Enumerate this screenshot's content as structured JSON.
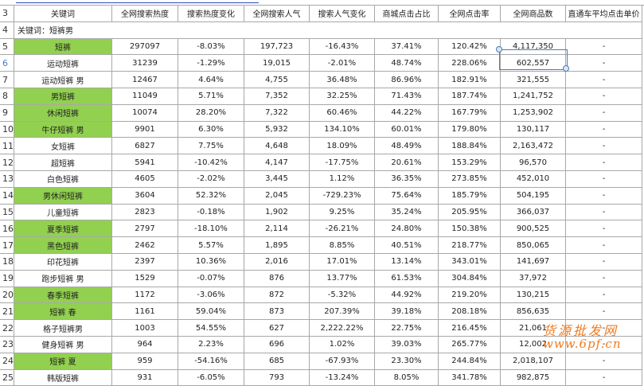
{
  "headers": [
    "关键词",
    "全网搜索热度",
    "搜索热度变化",
    "全网搜索人气",
    "搜索人气变化",
    "商城点击占比",
    "全网点击率",
    "全网商品数",
    "直通车平均点击单价"
  ],
  "row_numbers": {
    "header": "3",
    "keyword_row": "4"
  },
  "keyword_label": "关键词：短裤男",
  "selected_cell": "H6",
  "highlight_color": "#92d050",
  "rows": [
    {
      "n": "5",
      "k": "短裤",
      "g": true,
      "v": [
        "297097",
        "-8.03%",
        "197,723",
        "-16.43%",
        "37.41%",
        "120.42%",
        "4,117,350",
        "-"
      ]
    },
    {
      "n": "6",
      "k": "运动短裤",
      "g": false,
      "v": [
        "31239",
        "-1.29%",
        "19,015",
        "-2.01%",
        "48.74%",
        "228.06%",
        "602,557",
        "-"
      ]
    },
    {
      "n": "7",
      "k": "运动短裤 男",
      "g": false,
      "v": [
        "12467",
        "4.64%",
        "4,755",
        "36.48%",
        "86.96%",
        "182.91%",
        "321,555",
        "-"
      ]
    },
    {
      "n": "8",
      "k": "男短裤",
      "g": true,
      "v": [
        "11049",
        "5.71%",
        "7,352",
        "32.25%",
        "71.43%",
        "187.74%",
        "1,241,752",
        "-"
      ]
    },
    {
      "n": "9",
      "k": "休闲短裤",
      "g": true,
      "v": [
        "10074",
        "28.20%",
        "7,322",
        "60.46%",
        "44.22%",
        "167.79%",
        "1,253,902",
        "-"
      ]
    },
    {
      "n": "10",
      "k": "牛仔短裤 男",
      "g": true,
      "v": [
        "9901",
        "6.30%",
        "5,932",
        "134.10%",
        "60.01%",
        "179.80%",
        "130,117",
        "-"
      ]
    },
    {
      "n": "11",
      "k": "女短裤",
      "g": false,
      "v": [
        "6827",
        "7.75%",
        "4,648",
        "18.09%",
        "48.49%",
        "188.84%",
        "2,163,472",
        "-"
      ]
    },
    {
      "n": "12",
      "k": "超短裤",
      "g": false,
      "v": [
        "5941",
        "-10.42%",
        "4,147",
        "-17.75%",
        "20.61%",
        "153.29%",
        "96,570",
        "-"
      ]
    },
    {
      "n": "13",
      "k": "白色短裤",
      "g": false,
      "v": [
        "4605",
        "-2.02%",
        "3,445",
        "1.12%",
        "36.35%",
        "273.85%",
        "452,010",
        "-"
      ]
    },
    {
      "n": "14",
      "k": "男休闲短裤",
      "g": true,
      "v": [
        "3604",
        "52.32%",
        "2,045",
        "-729.23%",
        "75.64%",
        "185.79%",
        "504,195",
        "-"
      ]
    },
    {
      "n": "15",
      "k": "儿童短裤",
      "g": false,
      "v": [
        "2823",
        "-0.18%",
        "1,902",
        "9.25%",
        "35.24%",
        "205.95%",
        "366,037",
        "-"
      ]
    },
    {
      "n": "16",
      "k": "夏季短裤",
      "g": true,
      "v": [
        "2797",
        "-18.10%",
        "2,114",
        "-26.21%",
        "24.80%",
        "150.38%",
        "900,525",
        "-"
      ]
    },
    {
      "n": "17",
      "k": "黑色短裤",
      "g": true,
      "v": [
        "2462",
        "5.57%",
        "1,895",
        "8.85%",
        "40.51%",
        "218.77%",
        "850,065",
        "-"
      ]
    },
    {
      "n": "18",
      "k": "印花短裤",
      "g": false,
      "v": [
        "2397",
        "10.36%",
        "2,016",
        "17.01%",
        "13.14%",
        "343.01%",
        "141,697",
        "-"
      ]
    },
    {
      "n": "19",
      "k": "跑步短裤 男",
      "g": false,
      "v": [
        "1529",
        "-0.07%",
        "876",
        "13.77%",
        "61.53%",
        "304.84%",
        "37,972",
        "-"
      ]
    },
    {
      "n": "20",
      "k": "春季短裤",
      "g": true,
      "v": [
        "1172",
        "-3.06%",
        "872",
        "-5.32%",
        "44.92%",
        "219.20%",
        "130,215",
        "-"
      ]
    },
    {
      "n": "21",
      "k": "短裤 春",
      "g": true,
      "v": [
        "1161",
        "59.04%",
        "873",
        "207.39%",
        "39.18%",
        "208.18%",
        "856,635",
        "-"
      ]
    },
    {
      "n": "22",
      "k": "格子短裤男",
      "g": false,
      "v": [
        "1003",
        "54.55%",
        "627",
        "2,222.22%",
        "22.75%",
        "216.45%",
        "21,061",
        "-"
      ]
    },
    {
      "n": "23",
      "k": "健身短裤 男",
      "g": false,
      "v": [
        "964",
        "2.23%",
        "696",
        "1.02%",
        "39.03%",
        "265.77%",
        "12,002",
        "-"
      ]
    },
    {
      "n": "24",
      "k": "短裤 夏",
      "g": true,
      "v": [
        "959",
        "-54.16%",
        "685",
        "-67.93%",
        "23.30%",
        "244.84%",
        "2,018,107",
        "-"
      ]
    },
    {
      "n": "25",
      "k": "韩版短裤",
      "g": false,
      "v": [
        "931",
        "-6.05%",
        "793",
        "-13.24%",
        "8.05%",
        "341.78%",
        "982,875",
        "-"
      ]
    }
  ],
  "watermark": {
    "line1": "货源批发网",
    "line2": "www.6pf.cn"
  }
}
